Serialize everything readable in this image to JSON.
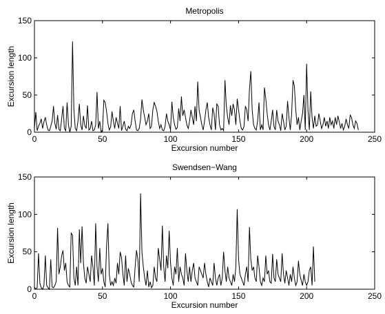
{
  "chart_data": [
    {
      "type": "line",
      "title": "Metropolis",
      "xlabel": "Excursion number",
      "ylabel": "Excursion length",
      "xlim": [
        0,
        250
      ],
      "ylim": [
        0,
        150
      ],
      "xticks": [
        0,
        50,
        100,
        150,
        200,
        250
      ],
      "yticks": [
        0,
        50,
        100,
        150
      ],
      "grid": false,
      "series": [
        {
          "values": [
            5,
            27,
            2,
            8,
            12,
            18,
            5,
            14,
            20,
            10,
            3,
            2,
            8,
            15,
            35,
            12,
            4,
            23,
            4,
            2,
            18,
            35,
            5,
            2,
            40,
            10,
            0,
            8,
            122,
            30,
            5,
            2,
            15,
            38,
            10,
            3,
            22,
            9,
            5,
            36,
            3,
            5,
            15,
            2,
            3,
            10,
            54,
            5,
            15,
            0,
            3,
            43,
            40,
            28,
            12,
            3,
            7,
            28,
            15,
            5,
            20,
            12,
            5,
            35,
            2,
            8,
            15,
            4,
            2,
            8,
            5,
            10,
            25,
            30,
            15,
            3,
            2,
            5,
            18,
            44,
            30,
            20,
            10,
            15,
            25,
            5,
            8,
            30,
            40,
            35,
            28,
            15,
            5,
            10,
            3,
            2,
            8,
            25,
            15,
            10,
            3,
            41,
            20,
            10,
            4,
            6,
            32,
            15,
            48,
            22,
            30,
            20,
            10,
            5,
            15,
            30,
            20,
            10,
            35,
            15,
            68,
            30,
            20,
            10,
            3,
            15,
            30,
            40,
            20,
            10,
            3,
            33,
            25,
            3,
            38,
            35,
            10,
            3,
            5,
            2,
            70,
            35,
            20,
            10,
            36,
            22,
            38,
            30,
            10,
            45,
            30,
            15,
            5,
            3,
            8,
            35,
            30,
            15,
            58,
            82,
            30,
            10,
            5,
            3,
            15,
            40,
            3,
            10,
            3,
            60,
            45,
            25,
            10,
            3,
            15,
            30,
            8,
            3,
            30,
            15,
            10,
            2,
            25,
            15,
            3,
            8,
            42,
            20,
            3,
            25,
            70,
            62,
            30,
            10,
            20,
            3,
            15,
            25,
            50,
            3,
            92,
            30,
            3,
            55,
            20,
            5,
            22,
            8,
            10,
            25,
            15,
            5,
            10,
            20,
            8,
            15,
            5,
            20,
            10,
            15,
            5,
            20,
            10,
            22,
            14,
            5,
            12,
            3,
            8,
            18,
            10,
            5,
            23,
            20,
            10,
            5,
            15,
            12,
            3
          ]
        }
      ]
    },
    {
      "type": "line",
      "title": "Swendsen−Wang",
      "xlabel": "Excursion number",
      "ylabel": "Excursion length",
      "xlim": [
        0,
        250
      ],
      "ylim": [
        0,
        150
      ],
      "xticks": [
        0,
        50,
        100,
        150,
        200,
        250
      ],
      "yticks": [
        0,
        50,
        100,
        150
      ],
      "grid": false,
      "series": [
        {
          "values": [
            3,
            0,
            2,
            48,
            8,
            2,
            0,
            5,
            45,
            5,
            2,
            0,
            40,
            3,
            2,
            5,
            10,
            82,
            20,
            30,
            45,
            52,
            25,
            35,
            10,
            5,
            3,
            75,
            72,
            15,
            5,
            30,
            5,
            80,
            35,
            84,
            35,
            15,
            8,
            30,
            20,
            10,
            45,
            30,
            5,
            88,
            30,
            10,
            55,
            20,
            28,
            10,
            3,
            58,
            88,
            20,
            5,
            10,
            5,
            15,
            8,
            35,
            20,
            50,
            42,
            20,
            5,
            45,
            10,
            28,
            20,
            10,
            5,
            3,
            30,
            52,
            40,
            10,
            128,
            50,
            30,
            15,
            5,
            25,
            3,
            10,
            2,
            5,
            30,
            15,
            10,
            55,
            40,
            25,
            85,
            30,
            10,
            45,
            28,
            78,
            35,
            15,
            5,
            30,
            20,
            55,
            10,
            30,
            20,
            15,
            5,
            48,
            25,
            10,
            30,
            10,
            25,
            35,
            15,
            10,
            5,
            30,
            25,
            20,
            15,
            35,
            20,
            10,
            3,
            15,
            10,
            5,
            35,
            15,
            5,
            15,
            20,
            5,
            15,
            50,
            25,
            10,
            30,
            15,
            10,
            5,
            20,
            10,
            30,
            107,
            40,
            20,
            15,
            10,
            5,
            20,
            30,
            10,
            83,
            40,
            25,
            30,
            15,
            10,
            45,
            30,
            10,
            5,
            15,
            10,
            45,
            20,
            25,
            10,
            8,
            47,
            15,
            10,
            40,
            20,
            15,
            10,
            48,
            20,
            8,
            25,
            15,
            5,
            20,
            10,
            30,
            15,
            5,
            10,
            38,
            20,
            12,
            5,
            20,
            10,
            5,
            10,
            25,
            30,
            5,
            57,
            10
          ]
        }
      ]
    }
  ]
}
